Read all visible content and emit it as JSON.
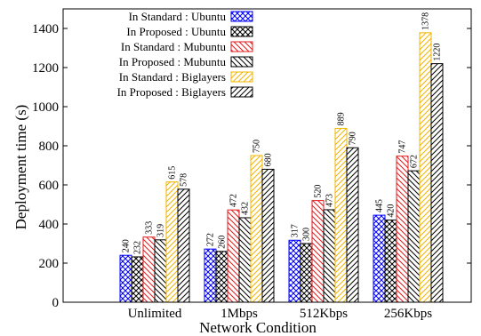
{
  "chart_data": {
    "type": "bar",
    "xlabel": "Network Condition",
    "ylabel": "Deployment time (s)",
    "ylim": [
      0,
      1500
    ],
    "yticks": [
      0,
      200,
      400,
      600,
      800,
      1000,
      1200,
      1400
    ],
    "categories": [
      "Unlimited",
      "1Mbps",
      "512Kbps",
      "256Kbps"
    ],
    "legend_position": "top-left",
    "series": [
      {
        "name": "In Standard : Ubuntu",
        "values": [
          240,
          272,
          317,
          445
        ],
        "color": "#0000ff",
        "pattern": "crosshatch"
      },
      {
        "name": "In Proposed : Ubuntu",
        "values": [
          232,
          260,
          300,
          420
        ],
        "color": "#000000",
        "pattern": "crosshatch"
      },
      {
        "name": "In Standard : Mubuntu",
        "values": [
          333,
          472,
          520,
          747
        ],
        "color": "#e41a1c",
        "pattern": "backslash"
      },
      {
        "name": "In Proposed : Mubuntu",
        "values": [
          319,
          432,
          473,
          672
        ],
        "color": "#000000",
        "pattern": "backslash"
      },
      {
        "name": "In Standard : Biglayers",
        "values": [
          615,
          750,
          889,
          1378
        ],
        "color": "#f0b400",
        "pattern": "slash"
      },
      {
        "name": "In Proposed : Biglayers",
        "values": [
          578,
          680,
          790,
          1220
        ],
        "color": "#000000",
        "pattern": "slash"
      }
    ]
  }
}
